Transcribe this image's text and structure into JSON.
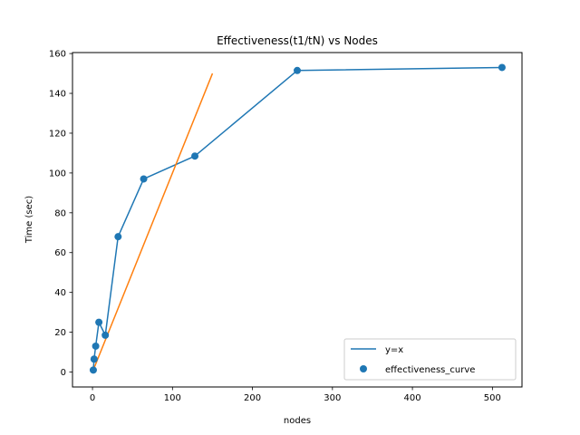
{
  "chart_data": {
    "type": "line",
    "title": "Effectiveness(t1/tN) vs Nodes",
    "xlabel": "nodes",
    "ylabel": "Time (sec)",
    "xlim": [
      -25,
      537
    ],
    "ylim": [
      -7.5,
      160.5
    ],
    "xticks": [
      0,
      100,
      200,
      300,
      400,
      500
    ],
    "yticks": [
      0,
      20,
      40,
      60,
      80,
      100,
      120,
      140,
      160
    ],
    "grid": false,
    "legend_position": "bottom-right",
    "series": [
      {
        "name": "y=x",
        "kind": "line",
        "color": "#1f77b4",
        "x": [
          1,
          2,
          4,
          8,
          16,
          32,
          64,
          128,
          256,
          512
        ],
        "y": [
          1,
          6.5,
          13,
          25,
          18.5,
          68,
          97,
          108.5,
          151.5,
          153
        ]
      },
      {
        "name": "effectiveness_curve",
        "kind": "scatter",
        "color": "#1f77b4",
        "x": [
          1,
          2,
          4,
          8,
          16,
          32,
          64,
          128,
          256,
          512
        ],
        "y": [
          1,
          6.5,
          13,
          25,
          18.5,
          68,
          97,
          108.5,
          151.5,
          153
        ]
      },
      {
        "kind": "line",
        "color": "#ff7f0e",
        "x": [
          0,
          150
        ],
        "y": [
          0,
          150
        ]
      }
    ]
  }
}
